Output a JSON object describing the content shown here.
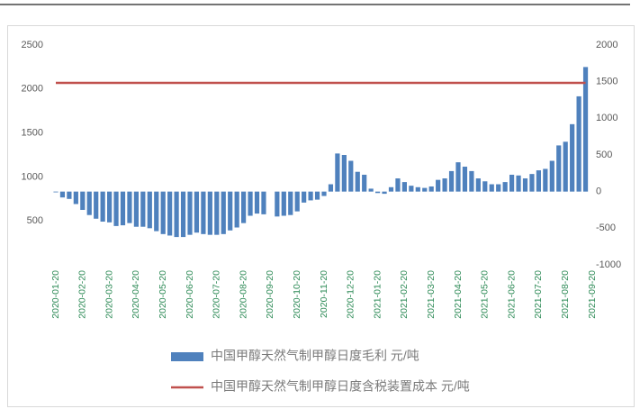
{
  "chart_data": {
    "type": "bar",
    "categories": [
      "2020-01-20",
      null,
      null,
      null,
      "2020-02-20",
      null,
      null,
      null,
      "2020-03-20",
      null,
      null,
      null,
      "2020-04-20",
      null,
      null,
      null,
      "2020-05-20",
      null,
      null,
      null,
      "2020-06-20",
      null,
      null,
      null,
      "2020-07-20",
      null,
      null,
      null,
      "2020-08-20",
      null,
      null,
      null,
      "2020-09-20",
      null,
      null,
      null,
      "2020-10-20",
      null,
      null,
      null,
      "2020-11-20",
      null,
      null,
      null,
      "2020-12-20",
      null,
      null,
      null,
      "2021-01-20",
      null,
      null,
      null,
      "2021-02-20",
      null,
      null,
      null,
      "2021-03-20",
      null,
      null,
      null,
      "2021-04-20",
      null,
      null,
      null,
      "2021-05-20",
      null,
      null,
      null,
      "2021-06-20",
      null,
      null,
      null,
      "2021-07-20",
      null,
      null,
      null,
      "2021-08-20",
      null,
      null,
      null,
      "2021-09-20"
    ],
    "series": [
      {
        "name": "中国甲醇天然气制甲醇日度毛利 元/吨",
        "color": "#4f81bd",
        "axis": "y2",
        "values": [
          -10,
          -80,
          -100,
          -170,
          -250,
          -320,
          -370,
          -410,
          -420,
          -470,
          -460,
          -430,
          -480,
          -480,
          -500,
          -540,
          -580,
          -600,
          -620,
          -620,
          -590,
          -560,
          -580,
          -590,
          -590,
          -580,
          -530,
          -490,
          -430,
          -330,
          -300,
          -310,
          null,
          -340,
          -330,
          -320,
          -270,
          -150,
          -120,
          -110,
          -60,
          100,
          520,
          500,
          420,
          270,
          230,
          40,
          -20,
          -30,
          60,
          180,
          130,
          80,
          60,
          50,
          70,
          160,
          180,
          280,
          400,
          340,
          280,
          180,
          140,
          100,
          100,
          130,
          230,
          220,
          180,
          240,
          290,
          310,
          420,
          630,
          680,
          920,
          1300,
          1700,
          null
        ]
      },
      {
        "name": "中国甲醇天然气制甲醇日度含税装置成本 元/吨",
        "color": "#c0504d",
        "type": "line",
        "values": [
          2070,
          2070,
          2070,
          2070,
          2070,
          2070,
          2070,
          2070,
          2070,
          2070,
          2070,
          2070,
          2070,
          2070,
          2070,
          2070,
          2070,
          2070,
          2070,
          2070,
          2070,
          2070,
          2070,
          2070,
          2070,
          2070,
          2070,
          2070,
          2070,
          2070,
          2070,
          2070,
          2070,
          2070,
          2070,
          2070,
          2070,
          2070,
          2070,
          2070,
          2070,
          2070,
          2070,
          2070,
          2070,
          2070,
          2070,
          2070,
          2070,
          2070,
          2070,
          2070,
          2070,
          2070,
          2070,
          2070,
          2070,
          2070,
          2070,
          2070,
          2070,
          2070,
          2070,
          2070,
          2070,
          2070,
          2070,
          2070,
          2070,
          2070,
          2070,
          2070,
          2070,
          2070,
          2070,
          2070,
          2070,
          2070,
          2070,
          2070,
          null
        ]
      }
    ],
    "ylim": [
      0,
      2500
    ],
    "yticks": [
      500,
      1000,
      1500,
      2000,
      2500
    ],
    "y2lim": [
      -1000,
      2000
    ],
    "y2ticks": [
      -1000,
      -500,
      0,
      500,
      1000,
      1500,
      2000
    ]
  }
}
